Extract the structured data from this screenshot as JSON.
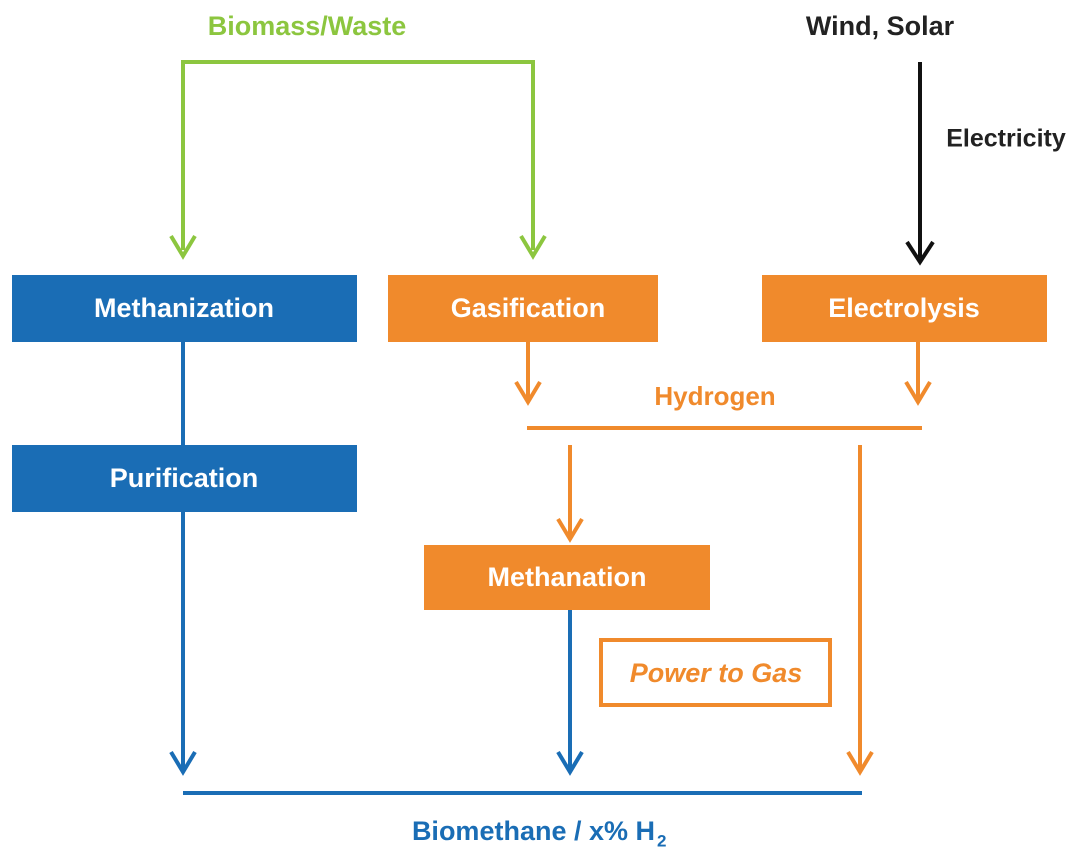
{
  "sources": {
    "biomass": "Biomass/Waste",
    "renewables": "Wind, Solar",
    "electricity": "Electricity"
  },
  "nodes": [
    {
      "label": "Methanization"
    },
    {
      "label": "Gasification"
    },
    {
      "label": "Electrolysis"
    },
    {
      "label": "Purification"
    },
    {
      "label": "Methanation"
    }
  ],
  "hydrogen": "Hydrogen",
  "power_to_gas": "Power to Gas",
  "output": {
    "label": "Biomethane / x% H",
    "subscript": "2"
  }
}
